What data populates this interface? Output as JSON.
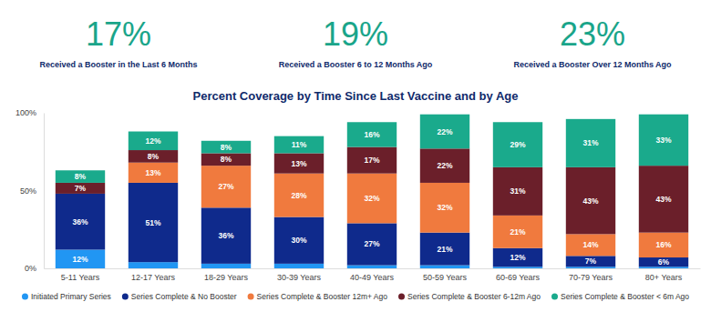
{
  "header": [
    {
      "value": "17%",
      "label": "Received a Booster in the Last 6 Months"
    },
    {
      "value": "19%",
      "label": "Received a Booster 6 to 12 Months Ago"
    },
    {
      "value": "23%",
      "label": "Received a Booster Over 12 Months Ago"
    }
  ],
  "chart_data": {
    "type": "bar",
    "title": "Percent Coverage by Time Since Last Vaccine and by Age",
    "stacked": true,
    "data_labels": true,
    "grid": false,
    "legend": "bottom",
    "categories": [
      "5-11 Years",
      "12-17 Years",
      "18-29 Years",
      "30-39 Years",
      "40-49 Years",
      "50-59 Years",
      "60-69 Years",
      "70-79 Years",
      "80+ Years"
    ],
    "ylim": [
      0,
      100
    ],
    "yticks": [
      {
        "value": 0,
        "label": "0%"
      },
      {
        "value": 50,
        "label": "50%"
      },
      {
        "value": 100,
        "label": "100%"
      }
    ],
    "series": [
      {
        "name": "Initiated Primary Series",
        "color": "#2196f3",
        "values": [
          12,
          4,
          3,
          3,
          2,
          2,
          1,
          1,
          1
        ],
        "value_labels": [
          "12%",
          null,
          null,
          null,
          null,
          null,
          null,
          null,
          null
        ]
      },
      {
        "name": "Series Complete & No Booster",
        "color": "#0f2a8c",
        "values": [
          36,
          51,
          36,
          30,
          27,
          21,
          12,
          7,
          6
        ],
        "value_labels": [
          "36%",
          "51%",
          "36%",
          "30%",
          "27%",
          "21%",
          "12%",
          "7%",
          "6%"
        ]
      },
      {
        "name": "Series Complete & Booster 12m+ Ago",
        "color": "#f07a3e",
        "values": [
          0,
          13,
          27,
          28,
          32,
          32,
          21,
          14,
          16
        ],
        "value_labels": [
          null,
          "13%",
          "27%",
          "28%",
          "32%",
          "32%",
          "21%",
          "14%",
          "16%"
        ]
      },
      {
        "name": "Series Complete & Booster 6-12m Ago",
        "color": "#6b1f2a",
        "values": [
          7,
          8,
          8,
          13,
          17,
          22,
          31,
          43,
          43
        ],
        "value_labels": [
          "7%",
          "8%",
          "8%",
          "13%",
          "17%",
          "22%",
          "31%",
          "43%",
          "43%"
        ]
      },
      {
        "name": "Series Complete & Booster < 6m Ago",
        "color": "#1aaa8c",
        "values": [
          8,
          12,
          8,
          11,
          16,
          22,
          29,
          31,
          33
        ],
        "value_labels": [
          "8%",
          "12%",
          "8%",
          "11%",
          "16%",
          "22%",
          "29%",
          "31%",
          "33%"
        ]
      }
    ]
  }
}
